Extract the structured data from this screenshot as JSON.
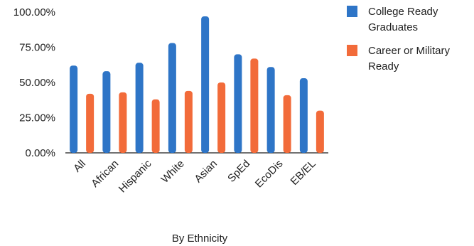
{
  "chart_data": {
    "type": "bar",
    "categories": [
      "All",
      "African",
      "Hispanic",
      "White",
      "Asian",
      "SpEd",
      "EcoDis",
      "EB/EL"
    ],
    "series": [
      {
        "name": "College Ready Graduates",
        "values": [
          62,
          58,
          64,
          78,
          97,
          70,
          61,
          53
        ],
        "color": "#2e75c7"
      },
      {
        "name": "Career or Military Ready",
        "values": [
          42,
          43,
          38,
          44,
          50,
          67,
          41,
          30
        ],
        "color": "#f26b3a"
      }
    ],
    "xlabel": "By Ethnicity",
    "ylabel": "",
    "ylim": [
      0,
      100
    ],
    "yticks": [
      "0.00%",
      "25.00%",
      "50.00%",
      "75.00%",
      "100.00%"
    ],
    "legend_position": "right",
    "grid": false
  }
}
